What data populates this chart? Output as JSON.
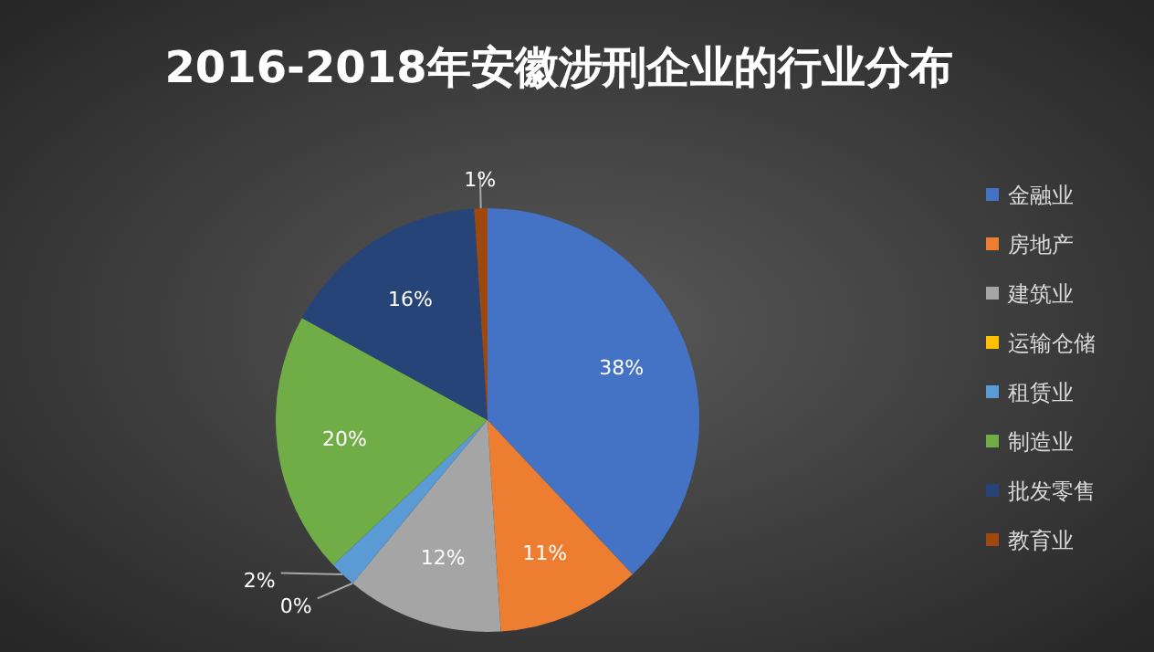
{
  "chart_data": {
    "type": "pie",
    "title": "2016-2018年安徽涉刑企业的行业分布",
    "categories": [
      "金融业",
      "房地产",
      "建筑业",
      "运输仓储",
      "租赁业",
      "制造业",
      "批发零售",
      "教育业"
    ],
    "values": [
      38,
      11,
      12,
      0,
      2,
      20,
      16,
      1
    ],
    "colors": [
      "#4472c4",
      "#ed7d31",
      "#a5a5a5",
      "#ffc000",
      "#5b9bd5",
      "#70ad47",
      "#264478",
      "#9e480e"
    ],
    "value_labels": [
      "38%",
      "11%",
      "12%",
      "0%",
      "2%",
      "20%",
      "16%",
      "1%"
    ],
    "legend": "right"
  }
}
